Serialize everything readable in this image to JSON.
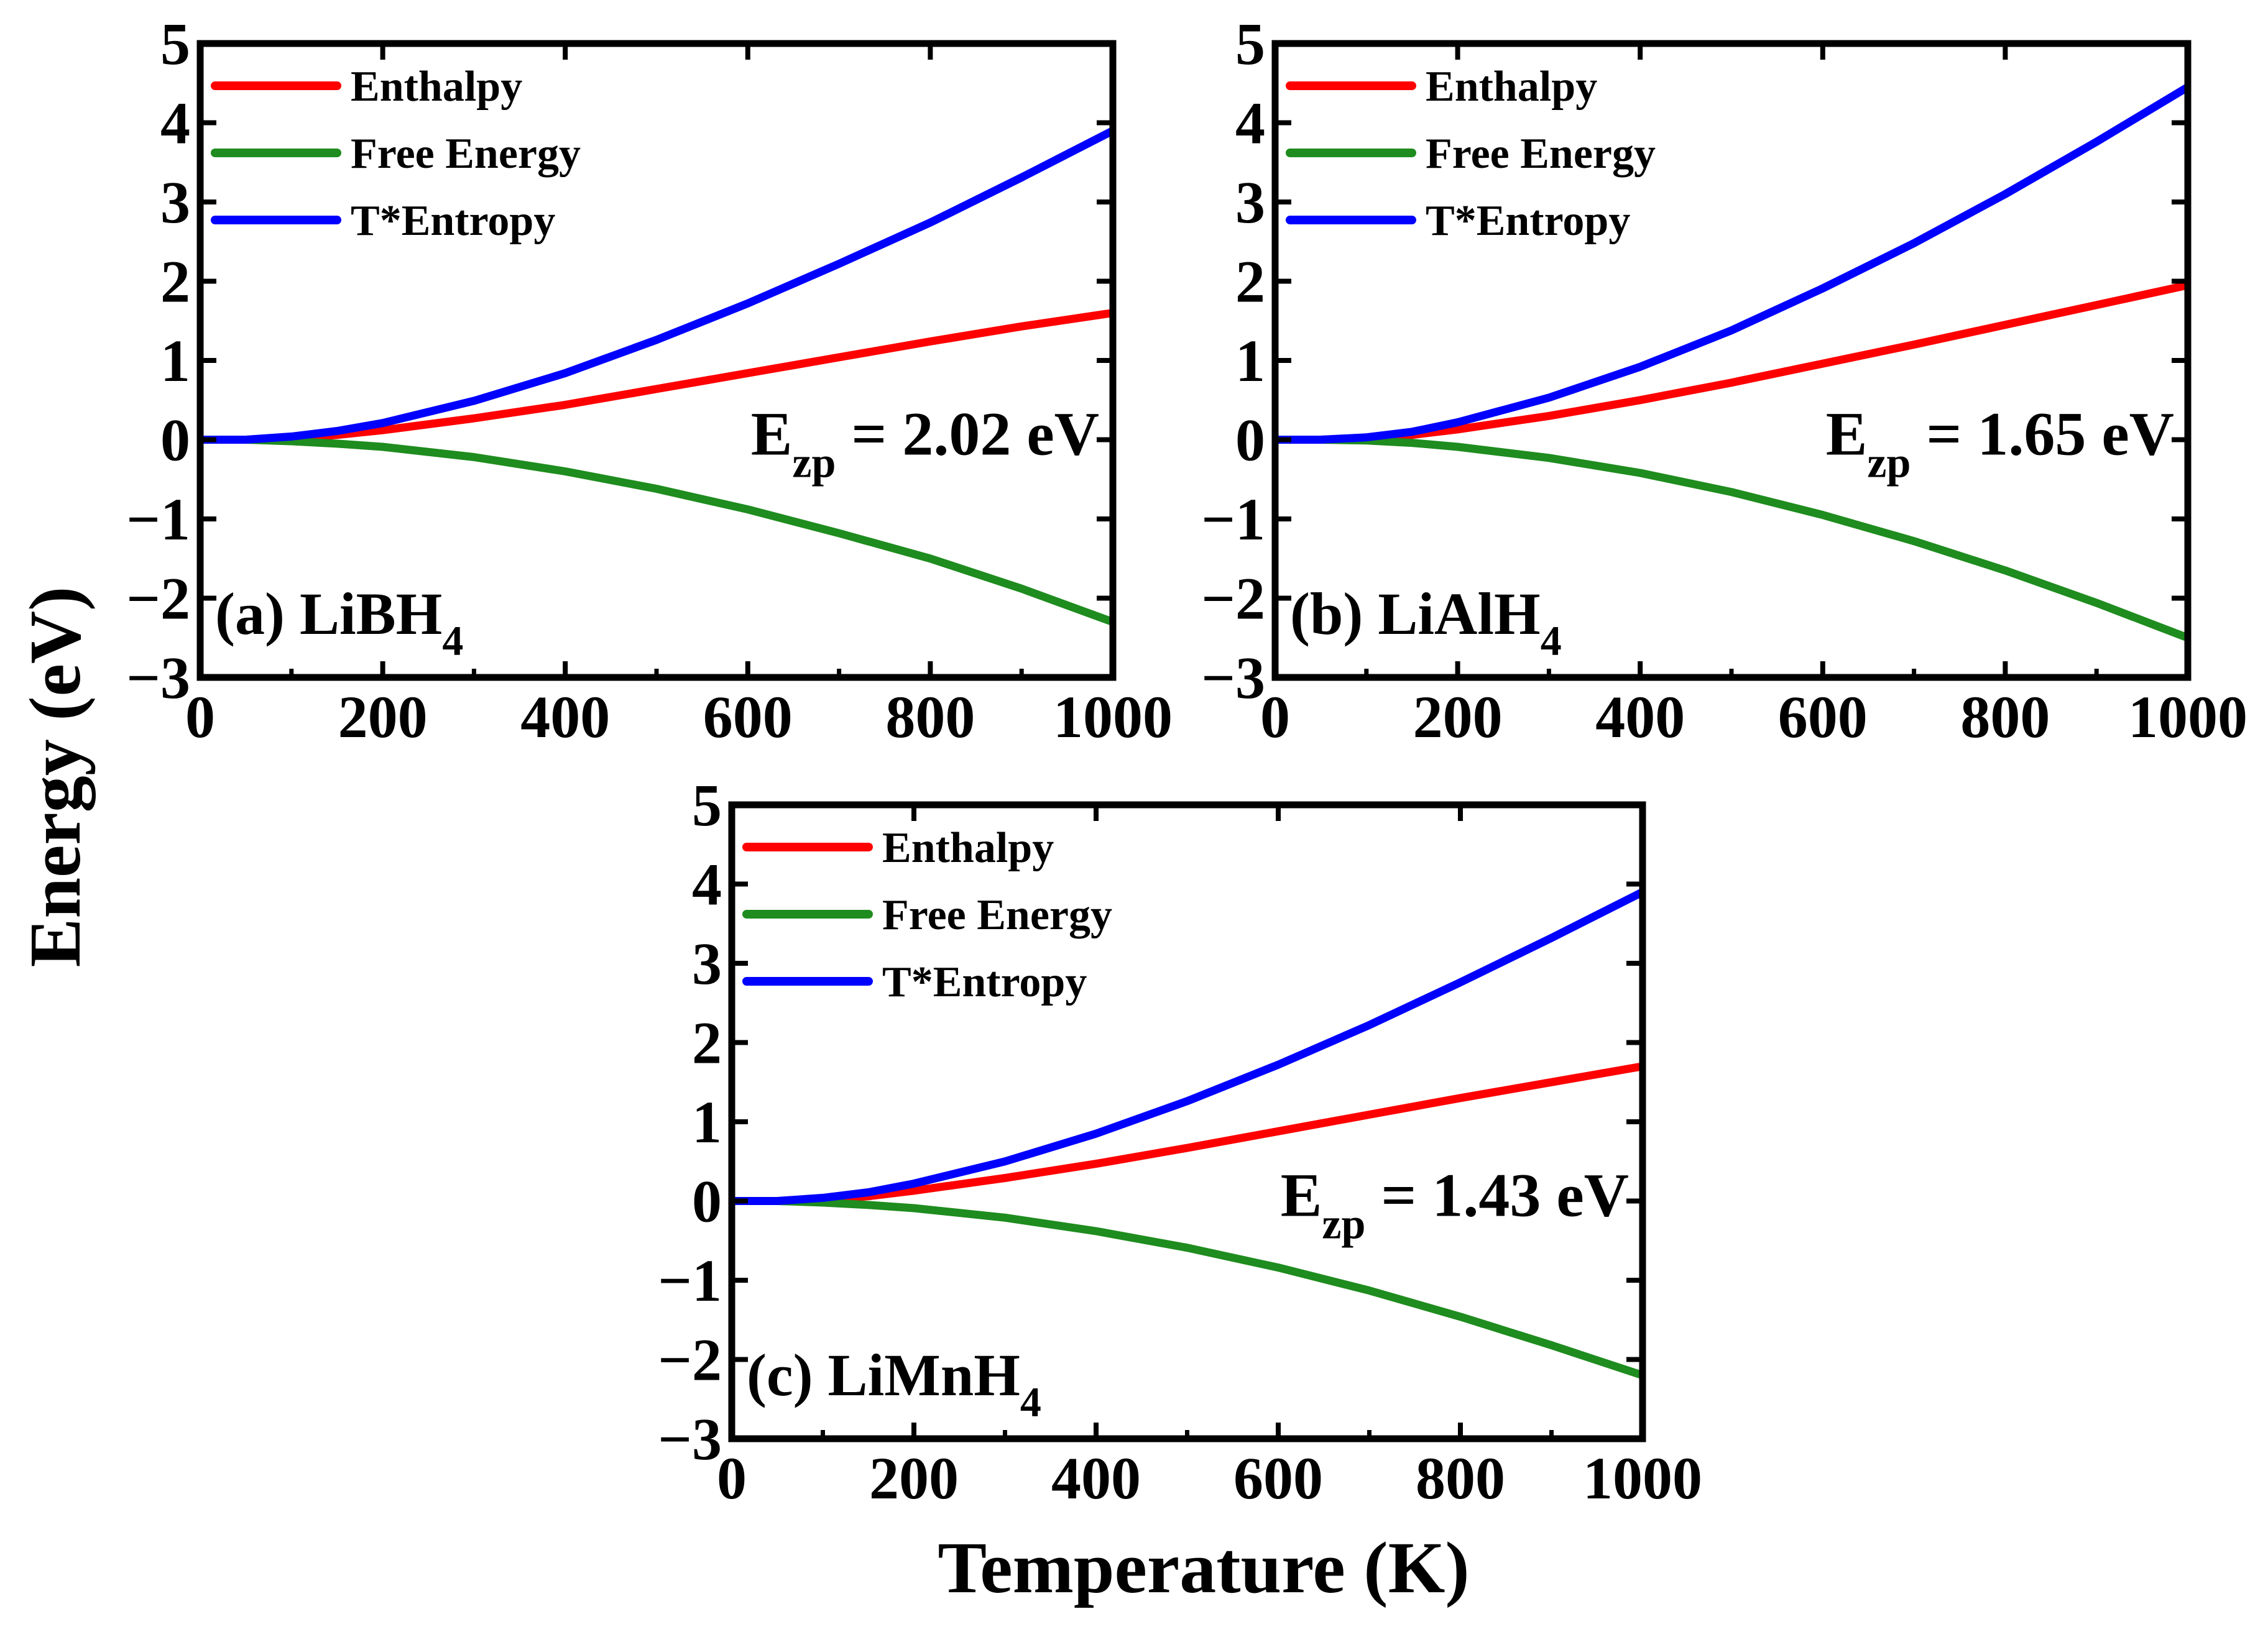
{
  "figure": {
    "ylabel": "Energy (eV)",
    "xlabel": "Temperature (K)"
  },
  "colors": {
    "enthalpy": "#ff0000",
    "free_energy": "#1e8c1e",
    "entropy": "#0000ff",
    "axis": "#000000"
  },
  "chart_data": [
    {
      "type": "line",
      "panel": "a",
      "title_prefix": "(a) LiBH",
      "title_sub": "4",
      "annotation_main": "E",
      "annotation_sub": "zp",
      "annotation_value": " = 2.02 eV",
      "xlim": [
        0,
        1000
      ],
      "ylim": [
        -3,
        5
      ],
      "xticks": [
        "0",
        "200",
        "400",
        "600",
        "800",
        "1000"
      ],
      "yticks": [
        "5",
        "4",
        "3",
        "2",
        "1",
        "0",
        "−1",
        "−2",
        "−3"
      ],
      "x": [
        0,
        50,
        100,
        150,
        200,
        300,
        400,
        500,
        600,
        700,
        800,
        900,
        1000
      ],
      "series": [
        {
          "name": "Enthalpy",
          "key": "enthalpy",
          "values": [
            0,
            0.0,
            0.02,
            0.06,
            0.12,
            0.27,
            0.44,
            0.64,
            0.84,
            1.04,
            1.24,
            1.43,
            1.6
          ]
        },
        {
          "name": "Free Energy",
          "key": "free_energy",
          "values": [
            0,
            0.0,
            -0.02,
            -0.05,
            -0.09,
            -0.22,
            -0.4,
            -0.62,
            -0.88,
            -1.18,
            -1.5,
            -1.88,
            -2.3
          ]
        },
        {
          "name": "T*Entropy",
          "key": "entropy",
          "values": [
            0,
            0.0,
            0.04,
            0.11,
            0.21,
            0.49,
            0.84,
            1.26,
            1.72,
            2.22,
            2.74,
            3.31,
            3.9
          ]
        }
      ]
    },
    {
      "type": "line",
      "panel": "b",
      "title_prefix": "(b) LiAlH",
      "title_sub": "4",
      "annotation_main": "E",
      "annotation_sub": "zp",
      "annotation_value": " = 1.65 eV",
      "xlim": [
        0,
        1000
      ],
      "ylim": [
        -3,
        5
      ],
      "xticks": [
        "0",
        "200",
        "400",
        "600",
        "800",
        "1000"
      ],
      "yticks": [
        "5",
        "4",
        "3",
        "2",
        "1",
        "0",
        "−1",
        "−2",
        "−3"
      ],
      "x": [
        0,
        50,
        100,
        150,
        200,
        300,
        400,
        500,
        600,
        700,
        800,
        900,
        1000
      ],
      "series": [
        {
          "name": "Enthalpy",
          "key": "enthalpy",
          "values": [
            0,
            0.0,
            0.02,
            0.06,
            0.13,
            0.3,
            0.5,
            0.72,
            0.96,
            1.2,
            1.45,
            1.7,
            1.95
          ]
        },
        {
          "name": "Free Energy",
          "key": "free_energy",
          "values": [
            0,
            0.0,
            -0.01,
            -0.04,
            -0.09,
            -0.23,
            -0.42,
            -0.66,
            -0.95,
            -1.28,
            -1.65,
            -2.06,
            -2.5
          ]
        },
        {
          "name": "T*Entropy",
          "key": "entropy",
          "values": [
            0,
            0.0,
            0.03,
            0.1,
            0.22,
            0.53,
            0.92,
            1.38,
            1.91,
            2.48,
            3.1,
            3.76,
            4.45
          ]
        }
      ]
    },
    {
      "type": "line",
      "panel": "c",
      "title_prefix": "(c) LiMnH",
      "title_sub": "4",
      "annotation_main": "E",
      "annotation_sub": "zp",
      "annotation_value": " = 1.43 eV",
      "xlim": [
        0,
        1000
      ],
      "ylim": [
        -3,
        5
      ],
      "xticks": [
        "0",
        "200",
        "400",
        "600",
        "800",
        "1000"
      ],
      "yticks": [
        "5",
        "4",
        "3",
        "2",
        "1",
        "0",
        "−1",
        "−2",
        "−3"
      ],
      "x": [
        0,
        50,
        100,
        150,
        200,
        300,
        400,
        500,
        600,
        700,
        800,
        900,
        1000
      ],
      "series": [
        {
          "name": "Enthalpy",
          "key": "enthalpy",
          "values": [
            0,
            0.0,
            0.02,
            0.06,
            0.13,
            0.29,
            0.47,
            0.67,
            0.88,
            1.09,
            1.3,
            1.5,
            1.7
          ]
        },
        {
          "name": "Free Energy",
          "key": "free_energy",
          "values": [
            0,
            0.0,
            -0.02,
            -0.05,
            -0.09,
            -0.21,
            -0.38,
            -0.59,
            -0.84,
            -1.13,
            -1.46,
            -1.82,
            -2.2
          ]
        },
        {
          "name": "T*Entropy",
          "key": "entropy",
          "values": [
            0,
            0.0,
            0.04,
            0.11,
            0.22,
            0.5,
            0.85,
            1.26,
            1.72,
            2.22,
            2.76,
            3.32,
            3.9
          ]
        }
      ]
    }
  ]
}
